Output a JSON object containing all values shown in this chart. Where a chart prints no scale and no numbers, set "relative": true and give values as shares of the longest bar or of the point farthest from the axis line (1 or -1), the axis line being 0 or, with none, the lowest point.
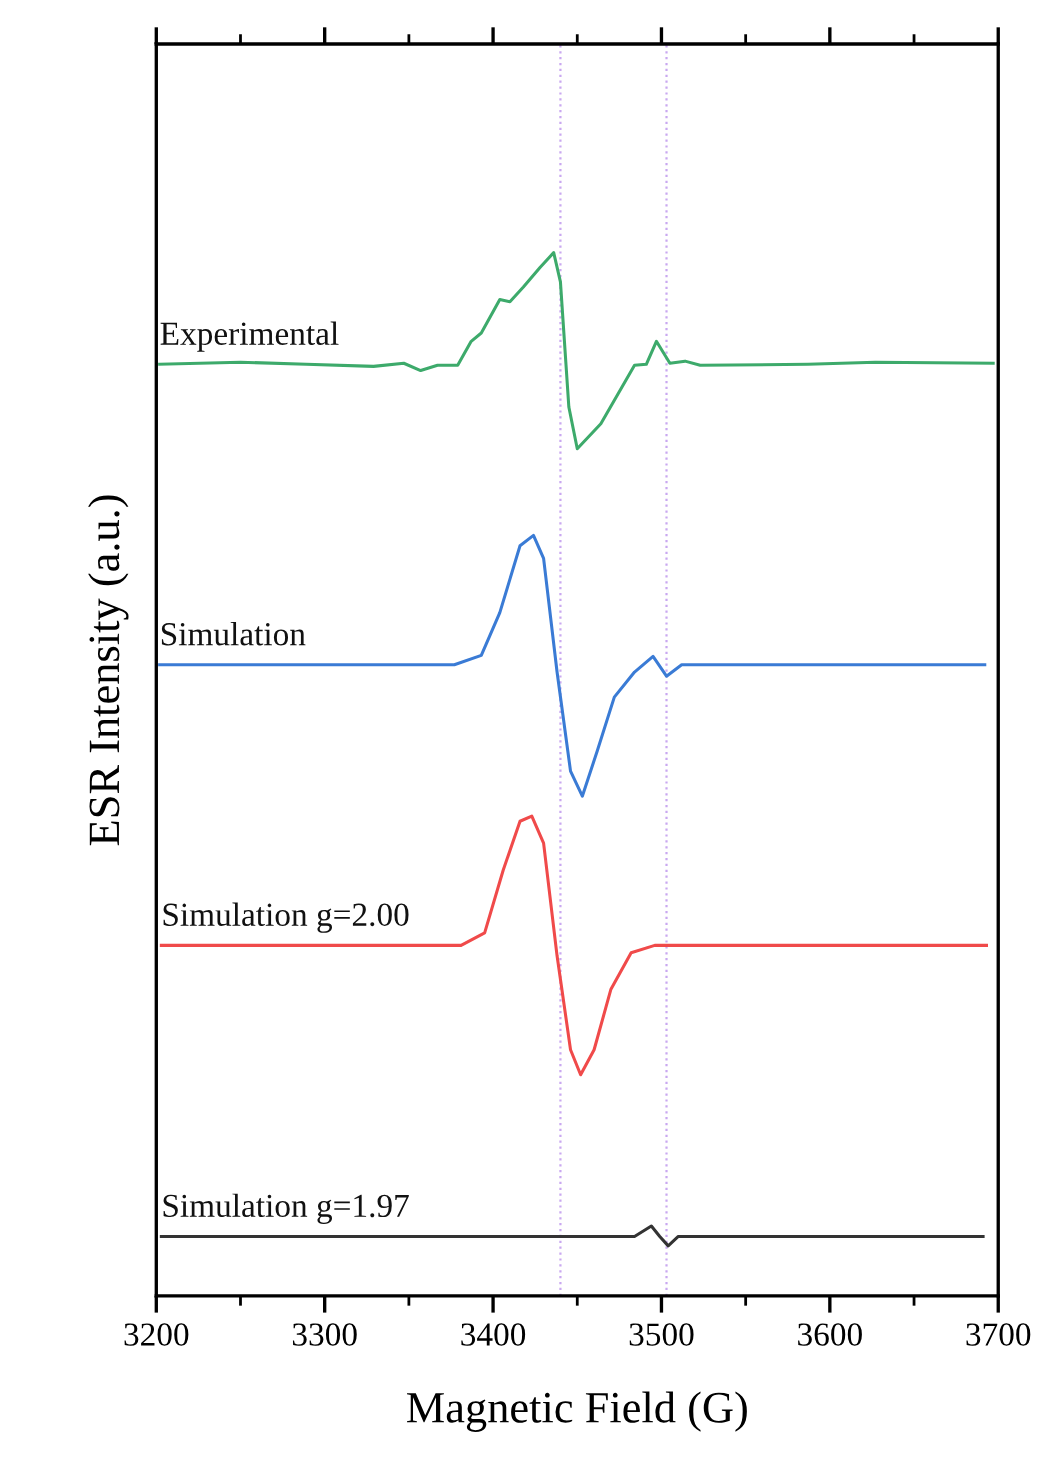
{
  "chart_data": {
    "type": "line",
    "relative": true,
    "xlabel": "Magnetic Field (G)",
    "ylabel": "ESR Intensity (a.u.)",
    "xlim": [
      3200,
      3700
    ],
    "xticks": [
      3200,
      3300,
      3400,
      3500,
      3600,
      3700
    ],
    "grid": false,
    "marker": "none",
    "line_style": "solid",
    "ref_lines": [
      {
        "axis": "x",
        "value": 3440,
        "color": "#c9a8f0",
        "line_style": "dotted"
      },
      {
        "axis": "x",
        "value": 3503,
        "color": "#c9a8f0",
        "line_style": "dotted"
      }
    ],
    "series": [
      {
        "name": "Experimental",
        "color": "#3daa6b",
        "x": [
          3202,
          3250,
          3289,
          3329,
          3347,
          3357,
          3367,
          3379,
          3387,
          3393,
          3404,
          3410,
          3418,
          3428,
          3436,
          3440,
          3445,
          3450,
          3464,
          3484,
          3491,
          3497,
          3505,
          3514,
          3523,
          3587,
          3627,
          3697
        ],
        "values": [
          0.893,
          0.895,
          0.893,
          0.891,
          0.894,
          0.887,
          0.892,
          0.892,
          0.915,
          0.923,
          0.955,
          0.953,
          0.967,
          0.986,
          1.0,
          0.972,
          0.852,
          0.812,
          0.836,
          0.892,
          0.893,
          0.915,
          0.894,
          0.896,
          0.892,
          0.893,
          0.895,
          0.894
        ]
      },
      {
        "name": "Simulation",
        "color": "#3a7bd5",
        "x": [
          3202,
          3377,
          3393,
          3404,
          3416,
          3424,
          3430,
          3438,
          3446,
          3453,
          3462,
          3472,
          3484,
          3495,
          3503,
          3512,
          3692
        ],
        "values": [
          0.605,
          0.605,
          0.614,
          0.655,
          0.719,
          0.729,
          0.707,
          0.598,
          0.503,
          0.479,
          0.523,
          0.574,
          0.598,
          0.613,
          0.594,
          0.605,
          0.605
        ]
      },
      {
        "name": "Simulation g=2.00",
        "color": "#f04a4a",
        "x": [
          3203,
          3381,
          3395,
          3406,
          3416,
          3423,
          3430,
          3438,
          3446,
          3452,
          3460,
          3470,
          3482,
          3496,
          3693
        ],
        "values": [
          0.336,
          0.336,
          0.348,
          0.408,
          0.455,
          0.46,
          0.434,
          0.326,
          0.236,
          0.212,
          0.236,
          0.294,
          0.329,
          0.336,
          0.336
        ]
      },
      {
        "name": "Simulation g=1.97",
        "color": "#333333",
        "x": [
          3203,
          3484,
          3494,
          3499,
          3504,
          3510,
          3691
        ],
        "values": [
          0.057,
          0.057,
          0.067,
          0.057,
          0.048,
          0.057,
          0.057
        ]
      }
    ]
  }
}
